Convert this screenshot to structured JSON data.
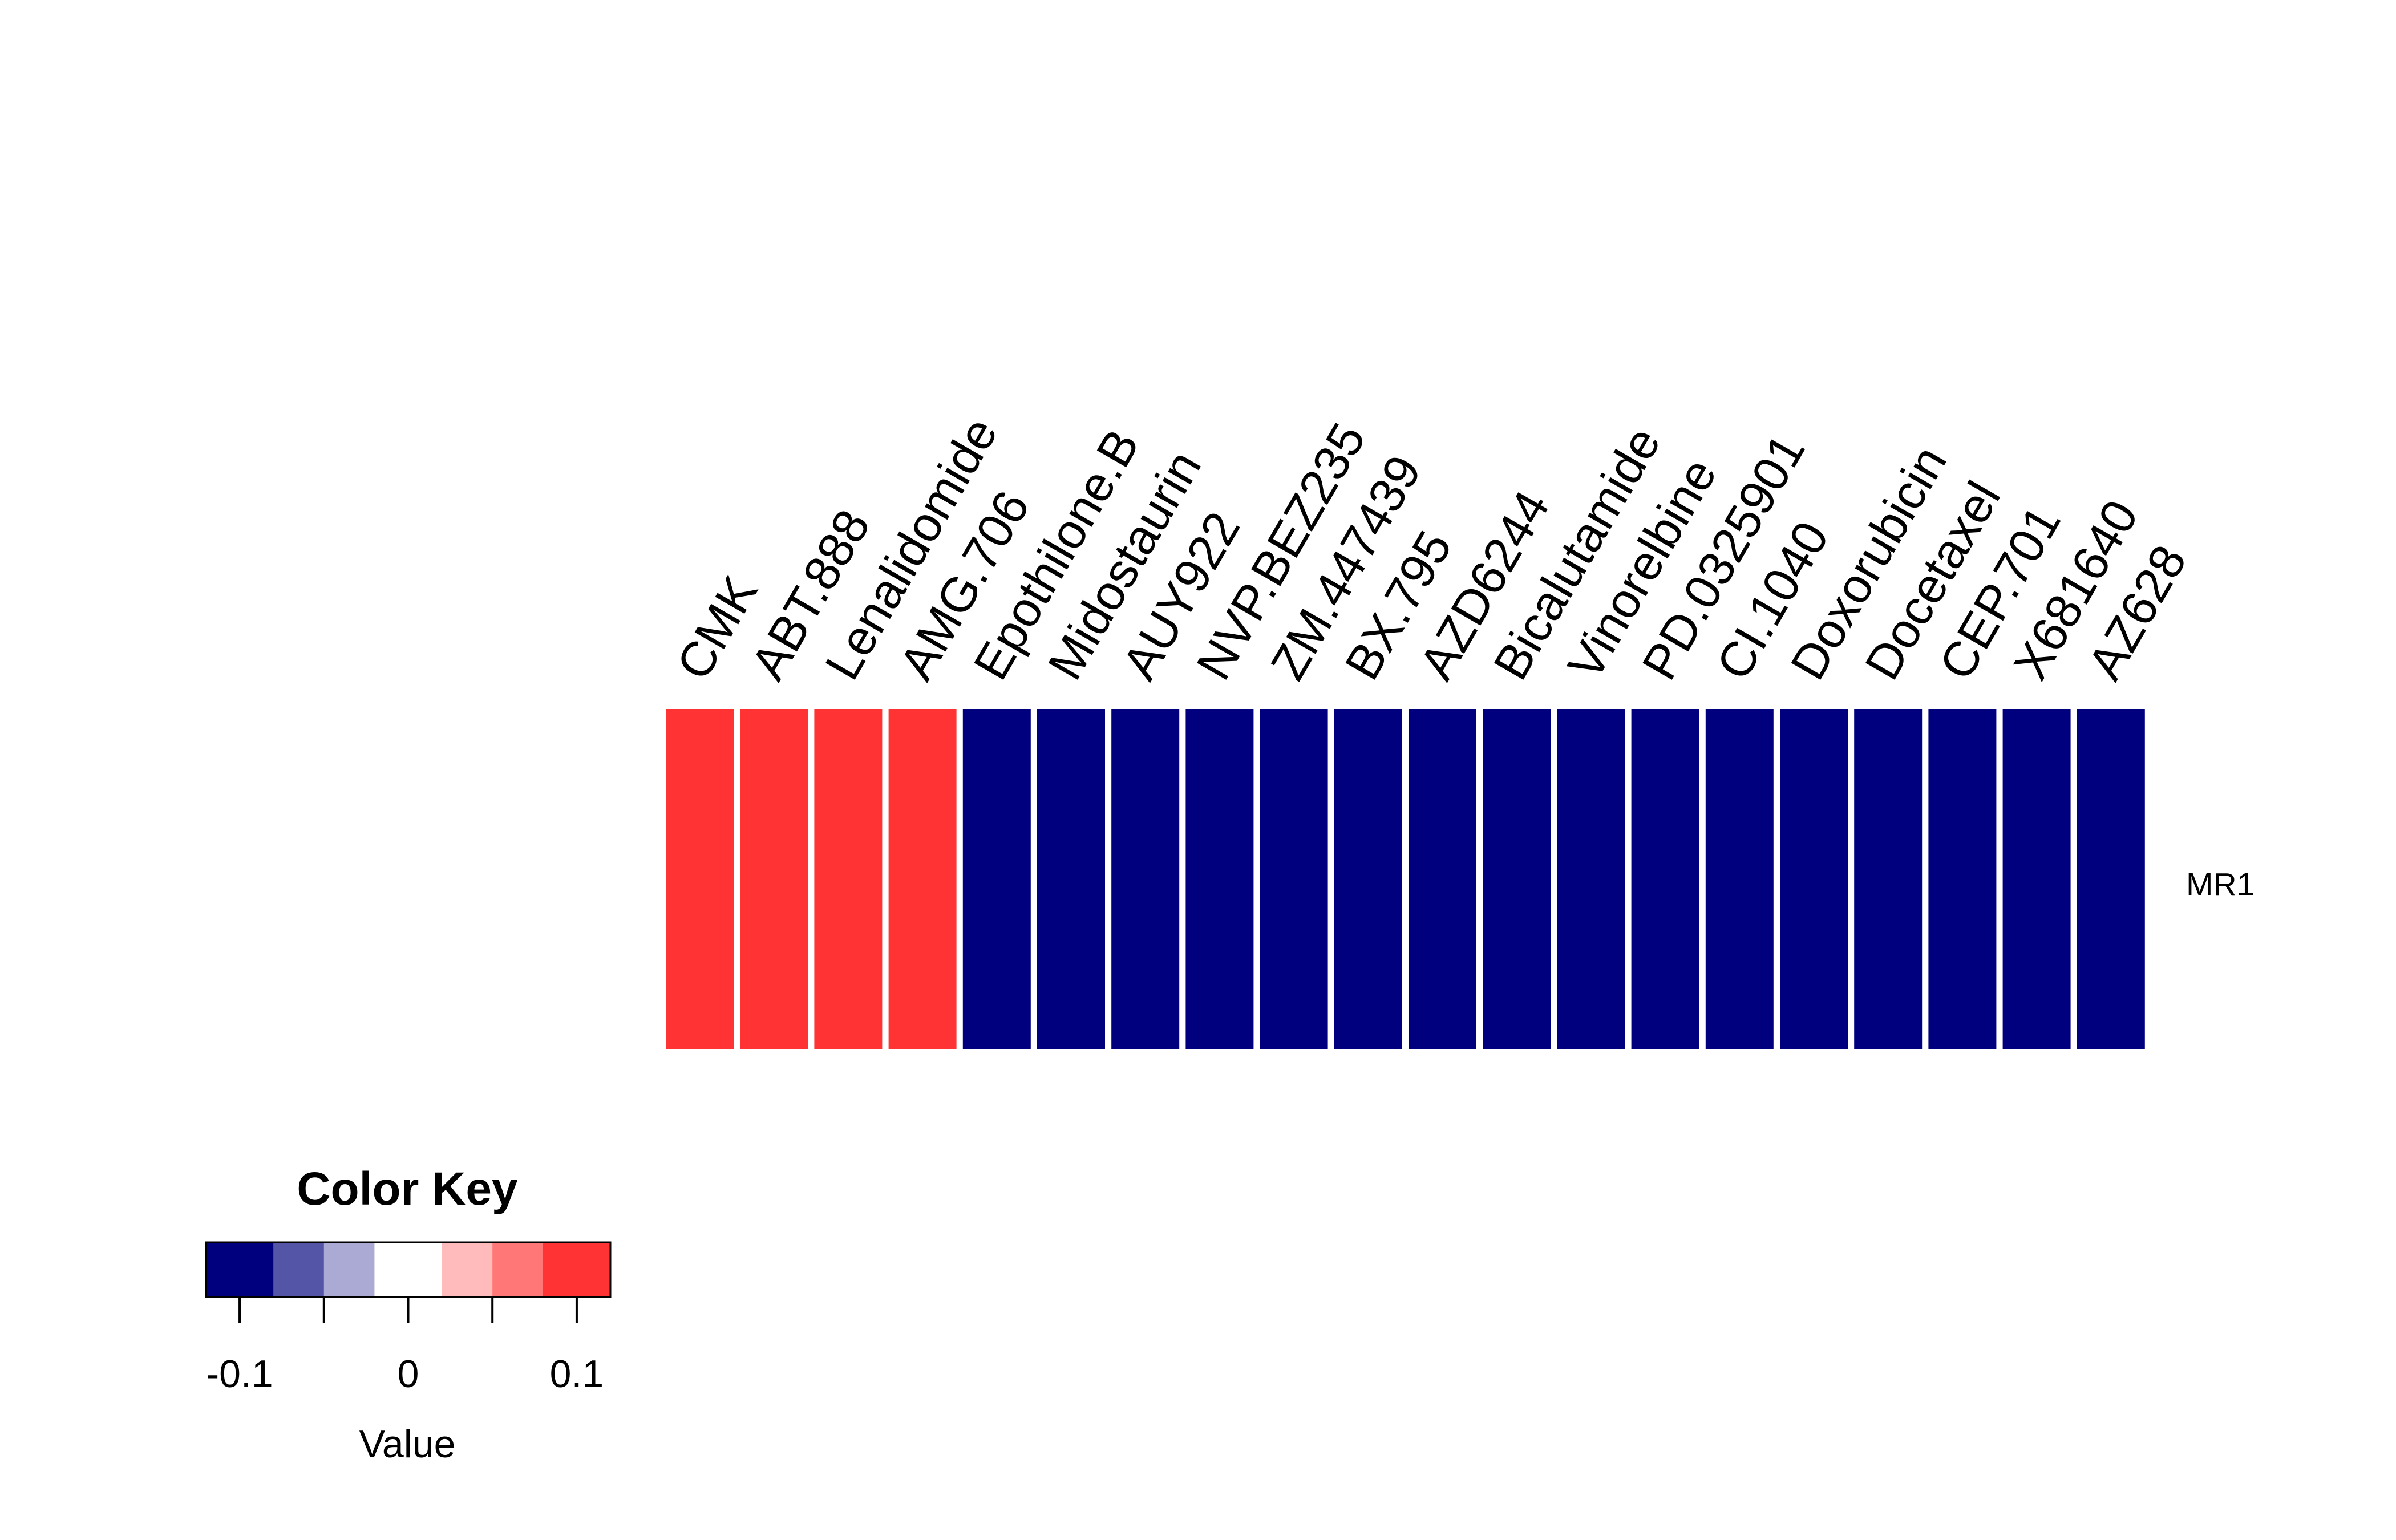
{
  "chart_data": {
    "type": "heatmap",
    "rows": [
      "MR1"
    ],
    "columns": [
      "CMK",
      "ABT.888",
      "Lenalidomide",
      "AMG.706",
      "Epothilone.B",
      "Midostaurin",
      "AUY922",
      "NVP.BEZ235",
      "ZM.447439",
      "BX.795",
      "AZD6244",
      "Bicalutamide",
      "Vinorelbine",
      "PD.0325901",
      "CI.1040",
      "Doxorubicin",
      "Docetaxel",
      "CEP.701",
      "X681640",
      "AZ628"
    ],
    "values": [
      [
        0.12,
        0.12,
        0.12,
        0.12,
        -0.09,
        -0.09,
        -0.09,
        -0.09,
        -0.12,
        -0.12,
        -0.12,
        -0.12,
        -0.12,
        -0.12,
        -0.12,
        -0.12,
        -0.12,
        -0.12,
        -0.12,
        -0.12
      ]
    ],
    "color_key": {
      "title": "Color Key",
      "xlabel": "Value",
      "range": [
        -0.12,
        0.12
      ],
      "breaks": [
        -0.12,
        -0.08,
        -0.05,
        -0.02,
        0.02,
        0.05,
        0.08,
        0.12
      ],
      "colors": [
        "#00007f",
        "#5555a8",
        "#aaaad4",
        "#ffffff",
        "#ffbbbb",
        "#ff7777",
        "#ff3333"
      ],
      "ticks": [
        -0.1,
        -0.05,
        0,
        0.05,
        0.1
      ],
      "tick_labels": [
        "-0.1",
        "0",
        "0.1"
      ]
    }
  }
}
